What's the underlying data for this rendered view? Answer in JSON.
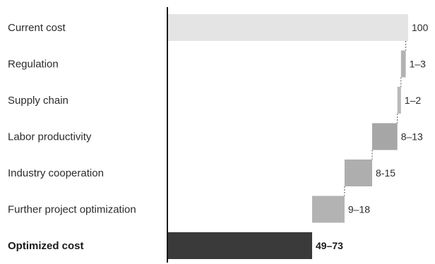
{
  "chart_data": {
    "type": "bar",
    "subtype": "waterfall",
    "orientation": "horizontal",
    "categories": [
      "Current cost",
      "Regulation",
      "Supply chain",
      "Labor productivity",
      "Industry cooperation",
      "Further project optimization",
      "Optimized cost"
    ],
    "value_labels": [
      "100",
      "1–3",
      "1–2",
      "8–13",
      "8-15",
      "9–18",
      "49–73"
    ],
    "bars": [
      {
        "category": "Current cost",
        "kind": "total",
        "start": 0,
        "end": 100,
        "color": "#e4e4e4"
      },
      {
        "category": "Regulation",
        "kind": "decrease",
        "start": 97,
        "end": 99,
        "color": "#b2b2b2"
      },
      {
        "category": "Supply chain",
        "kind": "decrease",
        "start": 95.5,
        "end": 97,
        "color": "#b9b9b9"
      },
      {
        "category": "Labor productivity",
        "kind": "decrease",
        "start": 85,
        "end": 95.5,
        "color": "#a6a6a6"
      },
      {
        "category": "Industry cooperation",
        "kind": "decrease",
        "start": 73.5,
        "end": 85,
        "color": "#aeaeae"
      },
      {
        "category": "Further project optimization",
        "kind": "decrease",
        "start": 60,
        "end": 73.5,
        "color": "#b3b3b3"
      },
      {
        "category": "Optimized cost",
        "kind": "total",
        "start": 0,
        "end": 60,
        "color": "#3a3a3a"
      }
    ],
    "bold_categories": [
      "Optimized cost"
    ],
    "xlim": [
      0,
      100
    ],
    "grid": false,
    "legend": "none",
    "connector_style": "dotted"
  }
}
